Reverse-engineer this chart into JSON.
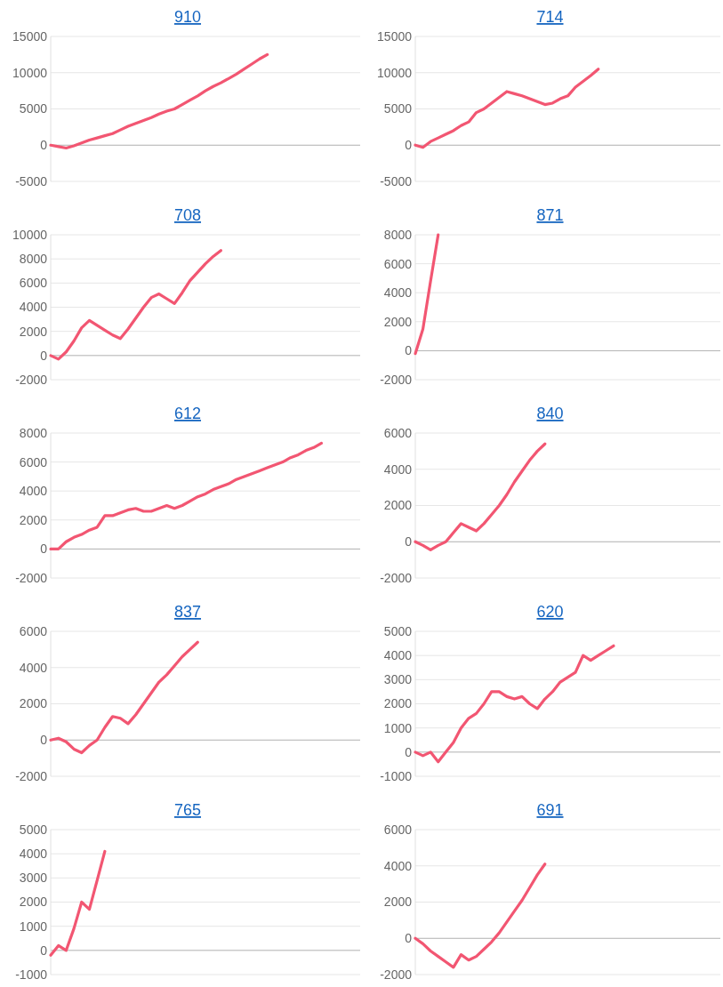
{
  "chart_data": [
    {
      "type": "line",
      "title": "910",
      "categories": [
        null,
        null,
        null,
        null,
        null,
        null,
        null,
        null,
        null,
        null,
        null,
        null,
        null,
        null,
        null,
        null,
        null,
        null,
        null,
        null,
        null,
        null,
        null,
        null,
        null,
        null,
        null,
        null,
        null,
        null,
        null,
        null,
        null,
        null,
        null,
        null,
        null,
        null,
        null,
        null,
        null
      ],
      "values": [
        0,
        -200,
        -400,
        -100,
        300,
        700,
        1000,
        1300,
        1600,
        2100,
        2600,
        3000,
        3400,
        3800,
        4300,
        4700,
        5000,
        5600,
        6200,
        6800,
        7500,
        8100,
        8600,
        9200,
        9800,
        10500,
        11200,
        11900,
        12500,
        null,
        null,
        null,
        null,
        null,
        null,
        null,
        null,
        null,
        null,
        null,
        null
      ],
      "color": "#f25672",
      "ylim": [
        -5000,
        15000
      ],
      "yticks": [
        -5000,
        0,
        5000,
        10000,
        15000
      ],
      "grid": "y",
      "tick_labels": "y"
    },
    {
      "type": "line",
      "title": "714",
      "categories": [
        null,
        null,
        null,
        null,
        null,
        null,
        null,
        null,
        null,
        null,
        null,
        null,
        null,
        null,
        null,
        null,
        null,
        null,
        null,
        null,
        null,
        null,
        null,
        null,
        null,
        null,
        null,
        null,
        null,
        null,
        null,
        null,
        null,
        null,
        null,
        null,
        null,
        null,
        null,
        null,
        null
      ],
      "values": [
        0,
        -300,
        500,
        1000,
        1500,
        2000,
        2700,
        3200,
        4500,
        5000,
        5800,
        6600,
        7400,
        7100,
        6800,
        6400,
        6000,
        5600,
        5800,
        6400,
        6800,
        8000,
        8800,
        9600,
        10500,
        null,
        null,
        null,
        null,
        null,
        null,
        null,
        null,
        null,
        null,
        null,
        null,
        null,
        null,
        null,
        null
      ],
      "color": "#f25672",
      "ylim": [
        -5000,
        15000
      ],
      "yticks": [
        -5000,
        0,
        5000,
        10000,
        15000
      ],
      "grid": "y",
      "tick_labels": "y"
    },
    {
      "type": "line",
      "title": "708",
      "categories": [
        null,
        null,
        null,
        null,
        null,
        null,
        null,
        null,
        null,
        null,
        null,
        null,
        null,
        null,
        null,
        null,
        null,
        null,
        null,
        null,
        null,
        null,
        null,
        null,
        null,
        null,
        null,
        null,
        null,
        null,
        null,
        null,
        null,
        null,
        null,
        null,
        null,
        null,
        null,
        null,
        null
      ],
      "values": [
        0,
        -300,
        300,
        1200,
        2300,
        2900,
        2500,
        2100,
        1700,
        1400,
        2200,
        3100,
        4000,
        4800,
        5100,
        4700,
        4300,
        5200,
        6200,
        6900,
        7600,
        8200,
        8700,
        null,
        null,
        null,
        null,
        null,
        null,
        null,
        null,
        null,
        null,
        null,
        null,
        null,
        null,
        null,
        null,
        null,
        null
      ],
      "color": "#f25672",
      "ylim": [
        -2000,
        10000
      ],
      "yticks": [
        -2000,
        0,
        2000,
        4000,
        6000,
        8000,
        10000
      ],
      "grid": "y",
      "tick_labels": "y"
    },
    {
      "type": "line",
      "title": "871",
      "categories": [
        null,
        null,
        null,
        null,
        null,
        null,
        null,
        null,
        null,
        null,
        null,
        null,
        null,
        null,
        null,
        null,
        null,
        null,
        null,
        null,
        null,
        null,
        null,
        null,
        null,
        null,
        null,
        null,
        null,
        null,
        null,
        null,
        null,
        null,
        null,
        null,
        null,
        null,
        null,
        null,
        null
      ],
      "values": [
        -200,
        1500,
        4800,
        8000,
        null,
        null,
        null,
        null,
        null,
        null,
        null,
        null,
        null,
        null,
        null,
        null,
        null,
        null,
        null,
        null,
        null,
        null,
        null,
        null,
        null,
        null,
        null,
        null,
        null,
        null,
        null,
        null,
        null,
        null,
        null,
        null,
        null,
        null,
        null,
        null,
        null
      ],
      "color": "#f25672",
      "ylim": [
        -2000,
        8000
      ],
      "yticks": [
        -2000,
        0,
        2000,
        4000,
        6000,
        8000
      ],
      "grid": "y",
      "tick_labels": "y"
    },
    {
      "type": "line",
      "title": "612",
      "categories": [
        null,
        null,
        null,
        null,
        null,
        null,
        null,
        null,
        null,
        null,
        null,
        null,
        null,
        null,
        null,
        null,
        null,
        null,
        null,
        null,
        null,
        null,
        null,
        null,
        null,
        null,
        null,
        null,
        null,
        null,
        null,
        null,
        null,
        null,
        null,
        null,
        null,
        null,
        null,
        null,
        null
      ],
      "values": [
        0,
        0,
        500,
        800,
        1000,
        1300,
        1500,
        2300,
        2300,
        2500,
        2700,
        2800,
        2600,
        2600,
        2800,
        3000,
        2800,
        3000,
        3300,
        3600,
        3800,
        4100,
        4300,
        4500,
        4800,
        5000,
        5200,
        5400,
        5600,
        5800,
        6000,
        6300,
        6500,
        6800,
        7000,
        7300,
        null,
        null,
        null,
        null,
        null
      ],
      "color": "#f25672",
      "ylim": [
        -2000,
        8000
      ],
      "yticks": [
        -2000,
        0,
        2000,
        4000,
        6000,
        8000
      ],
      "grid": "y",
      "tick_labels": "y"
    },
    {
      "type": "line",
      "title": "840",
      "categories": [
        null,
        null,
        null,
        null,
        null,
        null,
        null,
        null,
        null,
        null,
        null,
        null,
        null,
        null,
        null,
        null,
        null,
        null,
        null,
        null,
        null,
        null,
        null,
        null,
        null,
        null,
        null,
        null,
        null,
        null,
        null,
        null,
        null,
        null,
        null,
        null,
        null,
        null,
        null,
        null,
        null
      ],
      "values": [
        0,
        -200,
        -450,
        -200,
        0,
        500,
        1000,
        800,
        600,
        1000,
        1500,
        2000,
        2600,
        3300,
        3900,
        4500,
        5000,
        5400,
        null,
        null,
        null,
        null,
        null,
        null,
        null,
        null,
        null,
        null,
        null,
        null,
        null,
        null,
        null,
        null,
        null,
        null,
        null,
        null,
        null,
        null,
        null
      ],
      "color": "#f25672",
      "ylim": [
        -2000,
        6000
      ],
      "yticks": [
        -2000,
        0,
        2000,
        4000,
        6000
      ],
      "grid": "y",
      "tick_labels": "y"
    },
    {
      "type": "line",
      "title": "837",
      "categories": [
        null,
        null,
        null,
        null,
        null,
        null,
        null,
        null,
        null,
        null,
        null,
        null,
        null,
        null,
        null,
        null,
        null,
        null,
        null,
        null,
        null,
        null,
        null,
        null,
        null,
        null,
        null,
        null,
        null,
        null,
        null,
        null,
        null,
        null,
        null,
        null,
        null,
        null,
        null,
        null,
        null
      ],
      "values": [
        0,
        100,
        -100,
        -500,
        -700,
        -300,
        0,
        700,
        1300,
        1200,
        900,
        1400,
        2000,
        2600,
        3200,
        3600,
        4100,
        4600,
        5000,
        5400,
        null,
        null,
        null,
        null,
        null,
        null,
        null,
        null,
        null,
        null,
        null,
        null,
        null,
        null,
        null,
        null,
        null,
        null,
        null,
        null,
        null
      ],
      "color": "#f25672",
      "ylim": [
        -2000,
        6000
      ],
      "yticks": [
        -2000,
        0,
        2000,
        4000,
        6000
      ],
      "grid": "y",
      "tick_labels": "y"
    },
    {
      "type": "line",
      "title": "620",
      "categories": [
        null,
        null,
        null,
        null,
        null,
        null,
        null,
        null,
        null,
        null,
        null,
        null,
        null,
        null,
        null,
        null,
        null,
        null,
        null,
        null,
        null,
        null,
        null,
        null,
        null,
        null,
        null,
        null,
        null,
        null,
        null,
        null,
        null,
        null,
        null,
        null,
        null,
        null,
        null,
        null,
        null
      ],
      "values": [
        0,
        -150,
        0,
        -400,
        0,
        400,
        1000,
        1400,
        1600,
        2000,
        2500,
        2500,
        2300,
        2200,
        2300,
        2000,
        1800,
        2200,
        2500,
        2900,
        3100,
        3300,
        4000,
        3800,
        4000,
        4200,
        4400,
        null,
        null,
        null,
        null,
        null,
        null,
        null,
        null,
        null,
        null,
        null,
        null,
        null,
        null
      ],
      "color": "#f25672",
      "ylim": [
        -1000,
        5000
      ],
      "yticks": [
        -1000,
        0,
        1000,
        2000,
        3000,
        4000,
        5000
      ],
      "grid": "y",
      "tick_labels": "y"
    },
    {
      "type": "line",
      "title": "765",
      "categories": [
        null,
        null,
        null,
        null,
        null,
        null,
        null,
        null,
        null,
        null,
        null,
        null,
        null,
        null,
        null,
        null,
        null,
        null,
        null,
        null,
        null,
        null,
        null,
        null,
        null,
        null,
        null,
        null,
        null,
        null,
        null,
        null,
        null,
        null,
        null,
        null,
        null,
        null,
        null,
        null,
        null
      ],
      "values": [
        -200,
        200,
        0,
        900,
        2000,
        1700,
        2900,
        4100,
        null,
        null,
        null,
        null,
        null,
        null,
        null,
        null,
        null,
        null,
        null,
        null,
        null,
        null,
        null,
        null,
        null,
        null,
        null,
        null,
        null,
        null,
        null,
        null,
        null,
        null,
        null,
        null,
        null,
        null,
        null,
        null,
        null
      ],
      "color": "#f25672",
      "ylim": [
        -1000,
        5000
      ],
      "yticks": [
        -1000,
        0,
        1000,
        2000,
        3000,
        4000,
        5000
      ],
      "grid": "y",
      "tick_labels": "y"
    },
    {
      "type": "line",
      "title": "691",
      "categories": [
        null,
        null,
        null,
        null,
        null,
        null,
        null,
        null,
        null,
        null,
        null,
        null,
        null,
        null,
        null,
        null,
        null,
        null,
        null,
        null,
        null,
        null,
        null,
        null,
        null,
        null,
        null,
        null,
        null,
        null,
        null,
        null,
        null,
        null,
        null,
        null,
        null,
        null,
        null,
        null,
        null
      ],
      "values": [
        0,
        -300,
        -700,
        -1000,
        -1300,
        -1600,
        -900,
        -1200,
        -1000,
        -600,
        -200,
        300,
        900,
        1500,
        2100,
        2800,
        3500,
        4100,
        null,
        null,
        null,
        null,
        null,
        null,
        null,
        null,
        null,
        null,
        null,
        null,
        null,
        null,
        null,
        null,
        null,
        null,
        null,
        null,
        null,
        null,
        null
      ],
      "color": "#f25672",
      "ylim": [
        -2000,
        6000
      ],
      "yticks": [
        -2000,
        0,
        2000,
        4000,
        6000
      ],
      "grid": "y",
      "tick_labels": "y"
    }
  ]
}
